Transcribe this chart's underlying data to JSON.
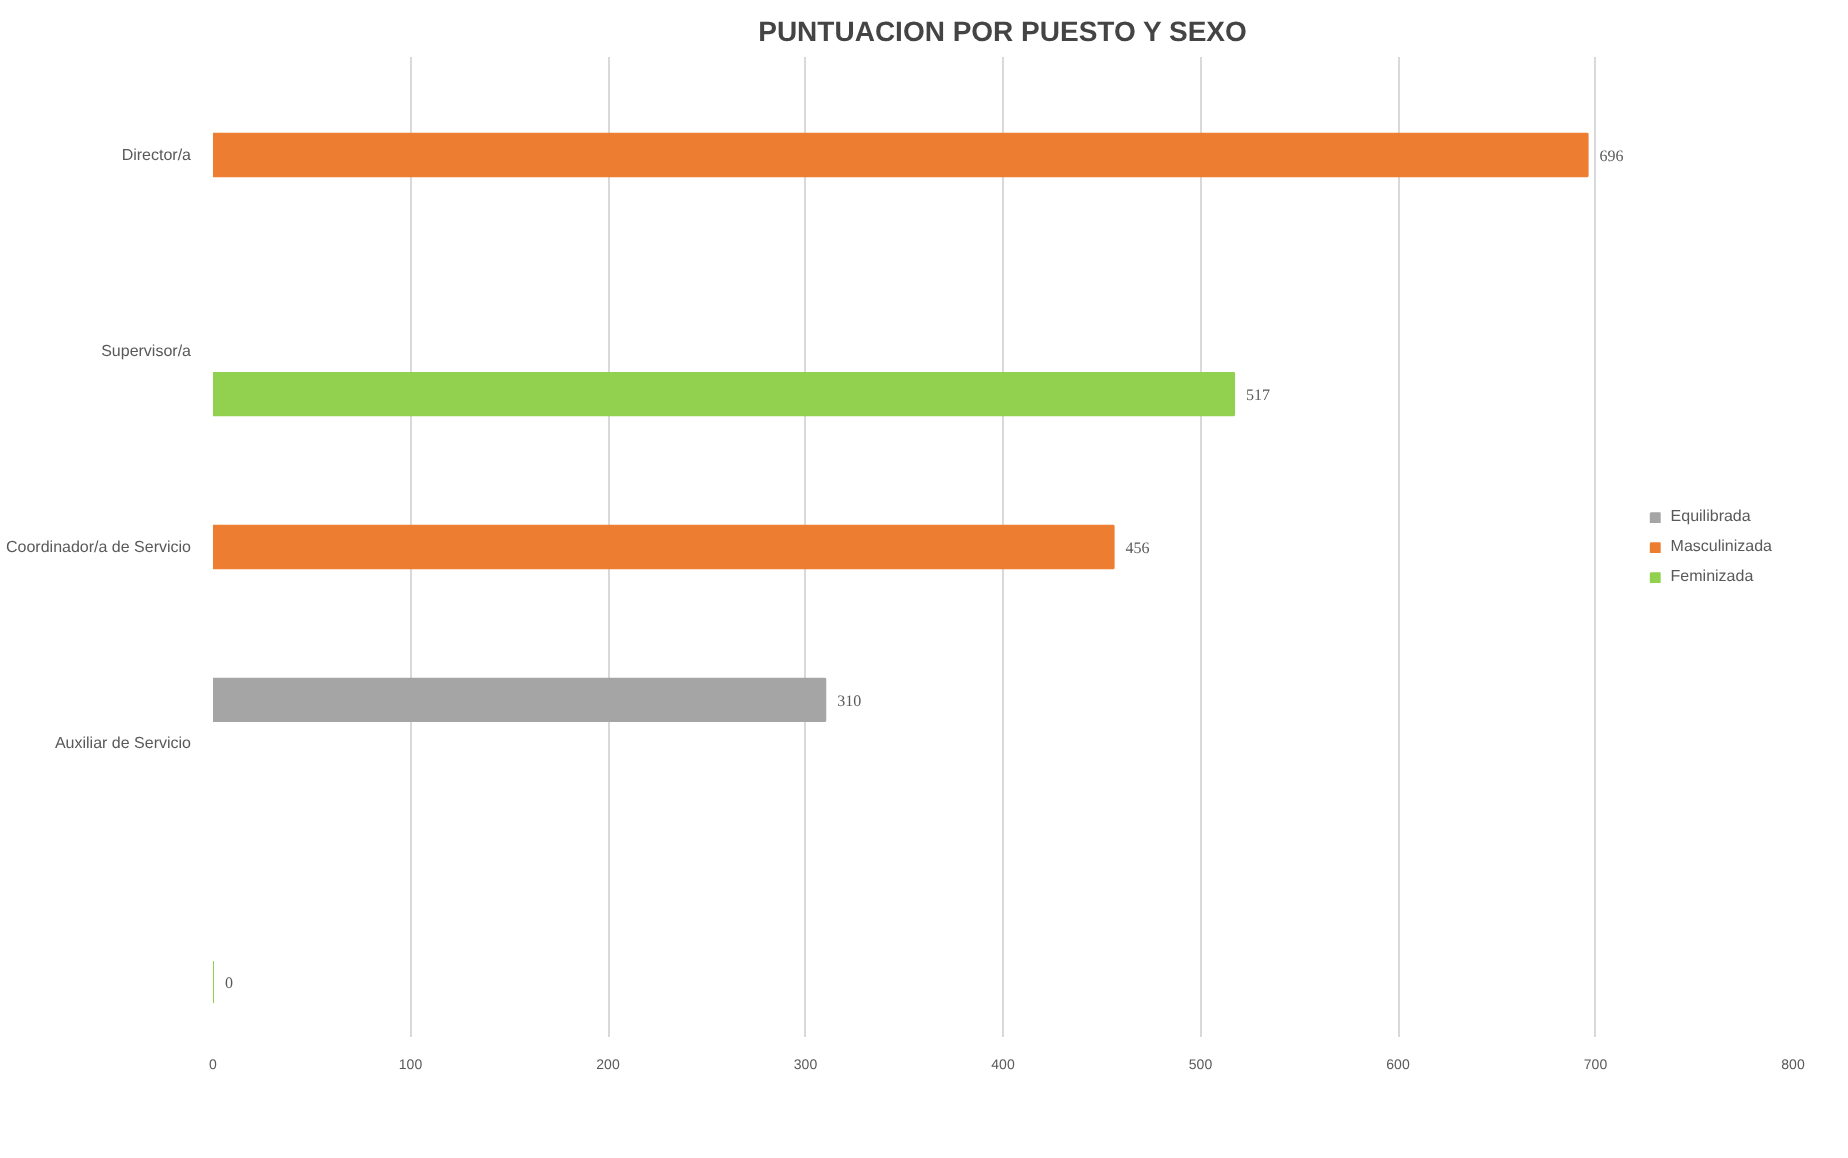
{
  "chart_data": {
    "type": "bar",
    "orientation": "horizontal",
    "title": "PUNTUACION POR PUESTO Y SEXO",
    "categories": [
      "Director/a",
      "Supervisor/a",
      "Coordinador/a de Servicio",
      "Auxiliar de Servicio",
      null
    ],
    "series": [
      {
        "name": "Equilibrada",
        "color": "#a5a5a5",
        "values": [
          null,
          null,
          null,
          310,
          null
        ]
      },
      {
        "name": "Masculinizada",
        "color": "#ed7d31",
        "values": [
          696,
          null,
          456,
          null,
          null
        ]
      },
      {
        "name": "Feminizada",
        "color": "#92d050",
        "values": [
          null,
          517,
          null,
          null,
          0
        ]
      }
    ],
    "xlim": [
      0,
      800
    ],
    "xticks": [
      0,
      100,
      200,
      300,
      400,
      500,
      600,
      700,
      800
    ],
    "grid": "x",
    "legend": "right",
    "data_labels": true
  }
}
